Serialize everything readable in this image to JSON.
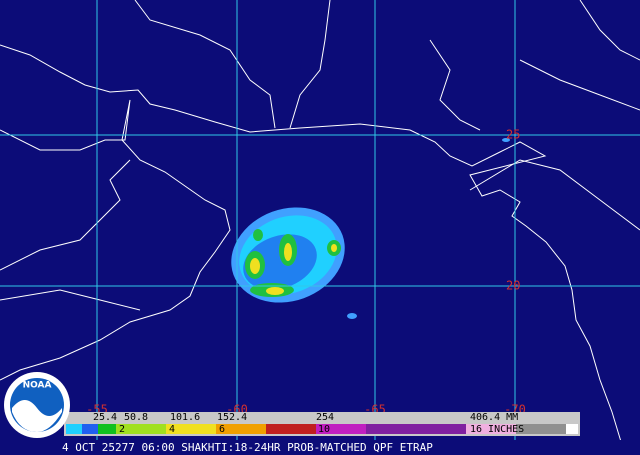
{
  "grid_labels": {
    "latitude": [
      "25",
      "20"
    ],
    "longitude": [
      "-55",
      "-60",
      "-65",
      "-70"
    ]
  },
  "color_bar": {
    "mm_labels": [
      "25.4",
      "50.8",
      "101.6",
      "152.4",
      "254",
      "406.4 MM"
    ],
    "inch_labels": [
      "2",
      "4",
      "6",
      "10",
      "16 INCHES"
    ]
  },
  "footer": "4 OCT 25277 06:00 SHAKHTI:18-24HR PROB-MATCHED QPF ETRAP",
  "logo": "NOAA"
}
